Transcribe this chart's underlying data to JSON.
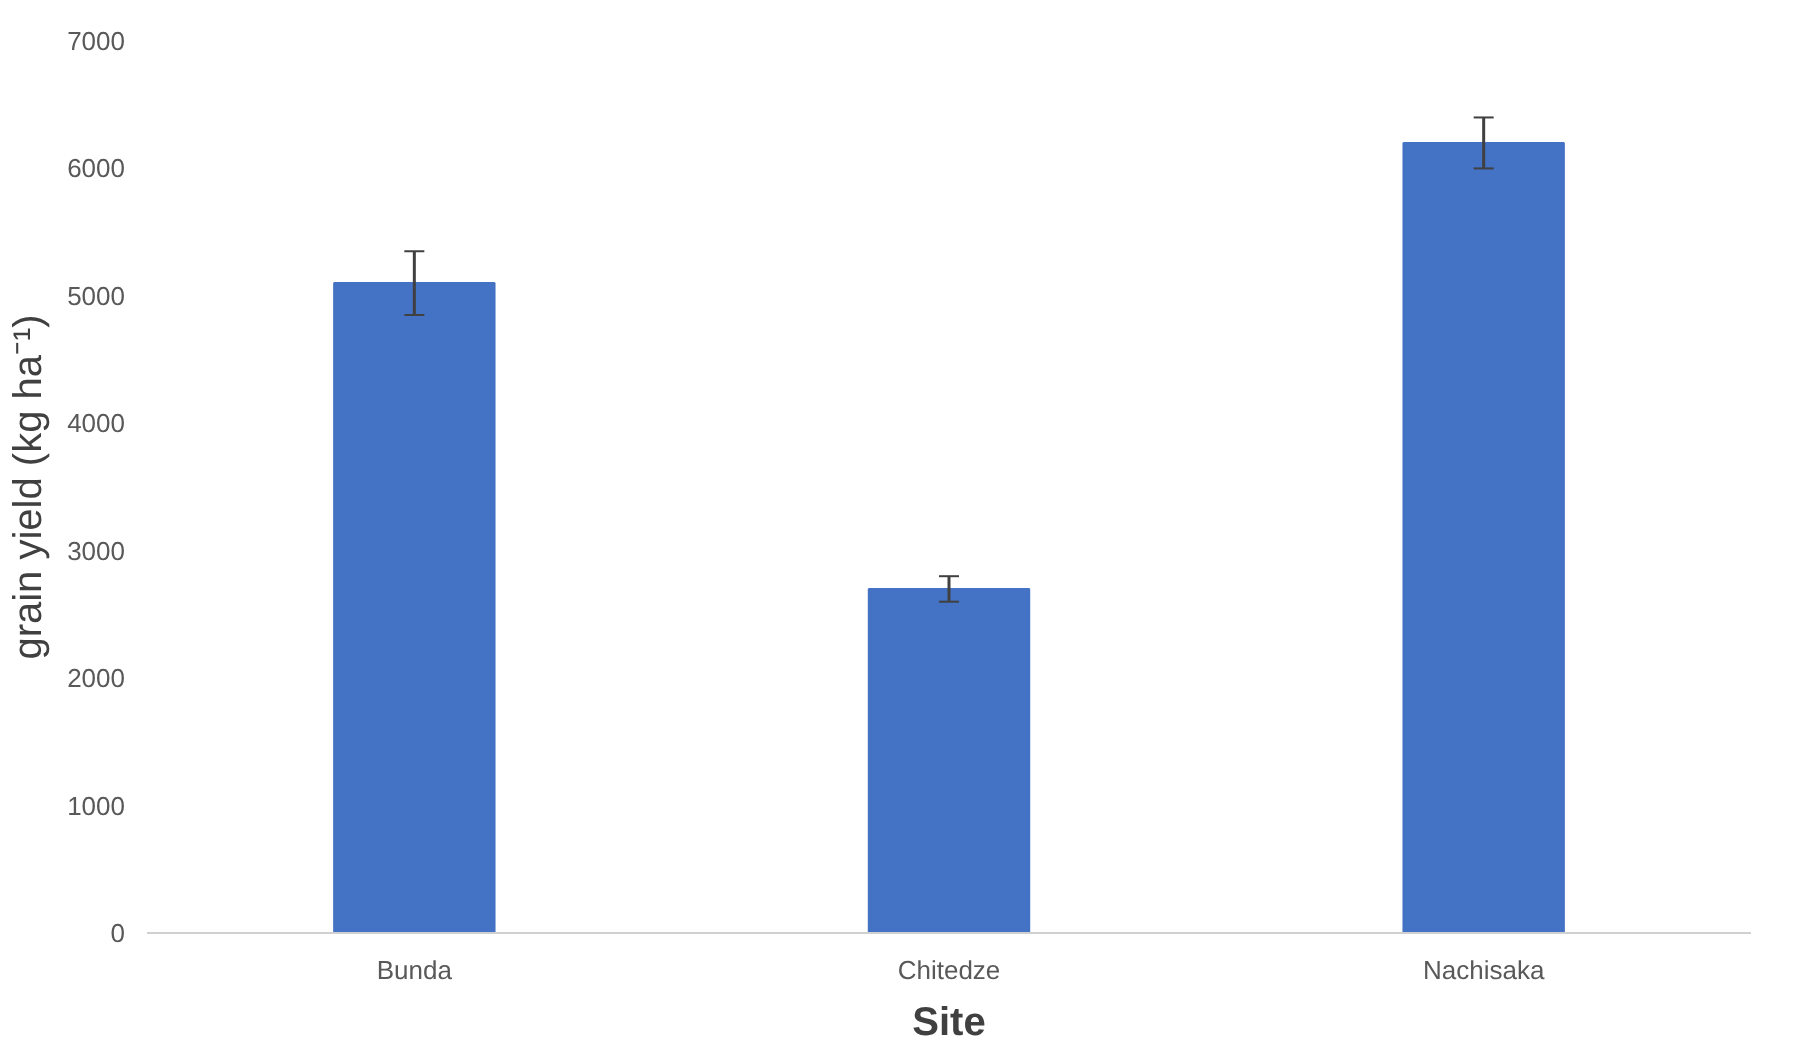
{
  "chart_data": {
    "type": "bar",
    "xlabel": "Site",
    "ylabel": "grain yield (kg ha⁻¹)",
    "categories": [
      "Bunda",
      "Chitedze",
      "Nachisaka"
    ],
    "values": [
      5100,
      2700,
      6200
    ],
    "errors": [
      250,
      100,
      200
    ],
    "color": "#4472c4",
    "ylim": [
      0,
      7000
    ],
    "yticks": [
      0,
      1000,
      2000,
      3000,
      4000,
      5000,
      6000,
      7000
    ],
    "grid": false
  }
}
